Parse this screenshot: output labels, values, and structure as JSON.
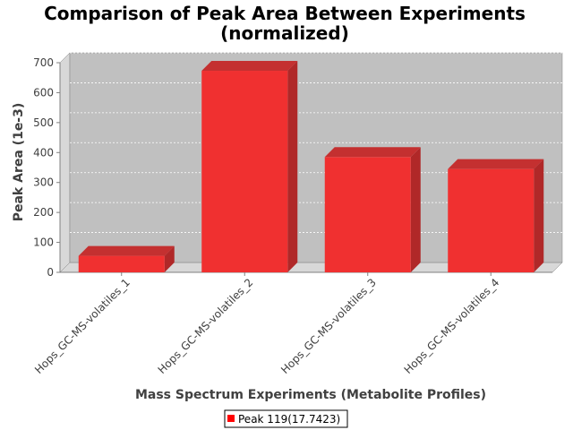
{
  "chart_data": {
    "type": "bar",
    "title": "Comparison of Peak Area Between Experiments",
    "subtitle": "(normalized)",
    "xlabel": "Mass Spectrum Experiments (Metabolite Profiles)",
    "ylabel": "Peak Area (1e-3)",
    "categories": [
      "Hops_GC-MS-volatiles_1",
      "Hops_GC-MS-volatiles_2",
      "Hops_GC-MS-volatiles_3",
      "Hops_GC-MS-volatiles_4"
    ],
    "series": [
      {
        "name": "Peak 119(17.7423)",
        "values": [
          55,
          673,
          385,
          345
        ],
        "color": "#ff0000"
      }
    ],
    "ylim": [
      0,
      700
    ],
    "yticks": [
      "0",
      "100",
      "200",
      "300",
      "400",
      "500",
      "600",
      "700"
    ],
    "grid": true,
    "style": "3d",
    "legend_position": "bottom-center",
    "plot_background": "#c0c0c0"
  }
}
